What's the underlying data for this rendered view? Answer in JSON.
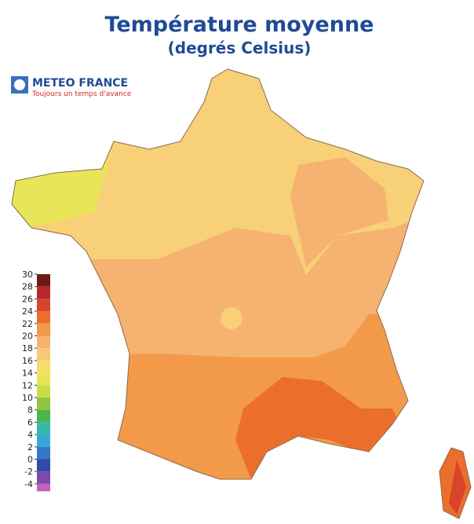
{
  "header": {
    "title": "Température moyenne",
    "subtitle": "(degrés Celsius)"
  },
  "logo": {
    "name": "METEO FRANCE",
    "tagline": "Toujours un temps d'avance"
  },
  "legend": {
    "ticks": [
      30,
      28,
      26,
      24,
      22,
      20,
      18,
      16,
      14,
      12,
      10,
      8,
      6,
      4,
      2,
      0,
      -2,
      -4
    ],
    "colors": [
      "#6e1a14",
      "#b8282a",
      "#d9442c",
      "#ec6e2c",
      "#f29a4a",
      "#f6b270",
      "#f8c878",
      "#f5de6c",
      "#e8e658",
      "#c8dc48",
      "#8cc640",
      "#4cb448",
      "#38b8a8",
      "#36a8d8",
      "#3678c8",
      "#2e4ca8",
      "#7a4aa8",
      "#c060c0"
    ]
  }
}
